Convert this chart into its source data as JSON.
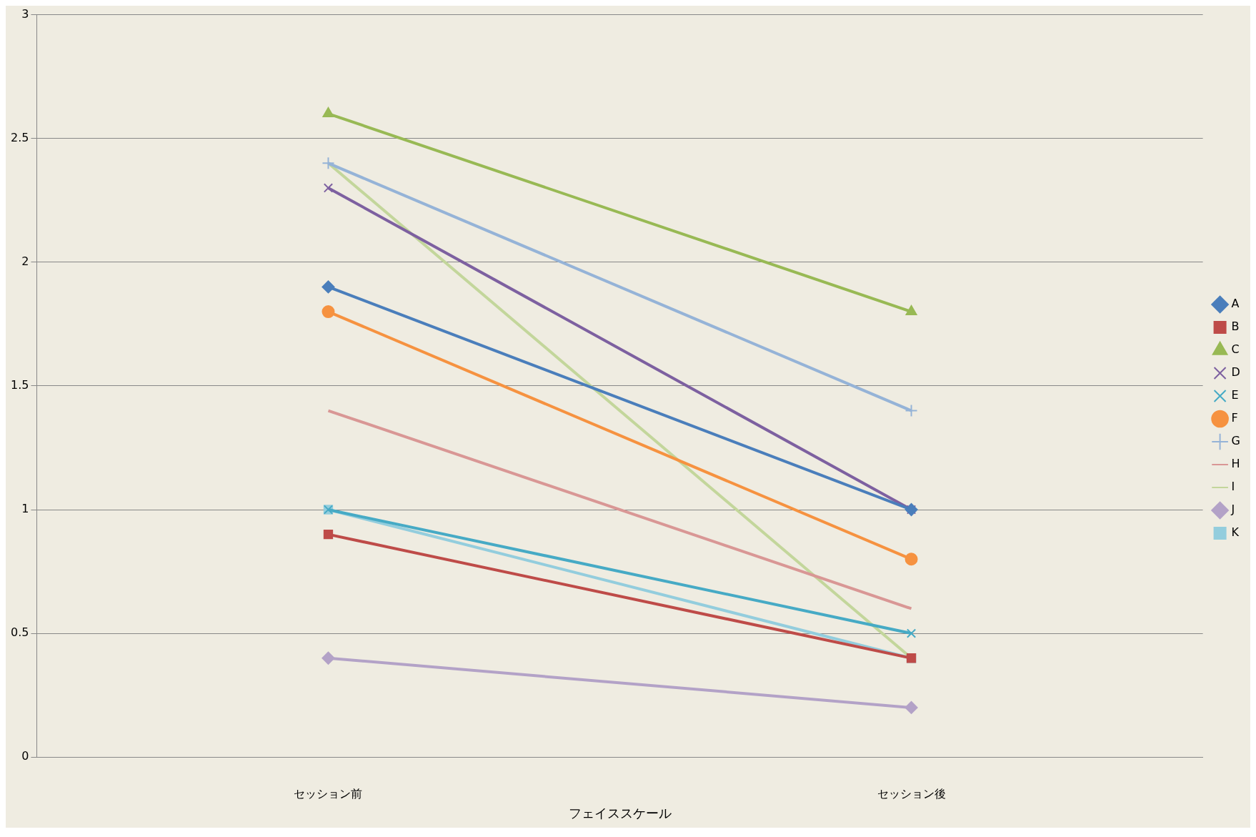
{
  "chart_data": {
    "type": "line",
    "xlabel": "フェイススケール",
    "categories": [
      "セッション前",
      "セッション後"
    ],
    "series": [
      {
        "name": "A",
        "color": "#4a7ebb",
        "marker": "diamond",
        "values": [
          1.9,
          1.0
        ]
      },
      {
        "name": "B",
        "color": "#be4b48",
        "marker": "square",
        "values": [
          0.9,
          0.4
        ]
      },
      {
        "name": "C",
        "color": "#98b954",
        "marker": "triangle",
        "values": [
          2.6,
          1.8
        ]
      },
      {
        "name": "D",
        "color": "#7d60a0",
        "marker": "cross",
        "values": [
          2.3,
          1.0
        ]
      },
      {
        "name": "E",
        "color": "#46aac5",
        "marker": "cross",
        "values": [
          1.0,
          0.5
        ]
      },
      {
        "name": "F",
        "color": "#f69240",
        "marker": "circle",
        "values": [
          1.8,
          0.8
        ]
      },
      {
        "name": "G",
        "color": "#95b3d7",
        "marker": "plus",
        "values": [
          2.4,
          1.4
        ]
      },
      {
        "name": "H",
        "color": "#d99795",
        "marker": "none",
        "values": [
          1.4,
          0.6
        ]
      },
      {
        "name": "I",
        "color": "#c3d69b",
        "marker": "none",
        "values": [
          2.4,
          0.4
        ]
      },
      {
        "name": "J",
        "color": "#b3a2c7",
        "marker": "diamond",
        "values": [
          0.4,
          0.2
        ]
      },
      {
        "name": "K",
        "color": "#93cddd",
        "marker": "square",
        "values": [
          1.0,
          0.4
        ]
      }
    ],
    "ylim": [
      0,
      3
    ],
    "yticks": [
      0,
      0.5,
      1,
      1.5,
      2,
      2.5,
      3
    ],
    "grid": "y",
    "legend": "right",
    "line_style": "solid"
  }
}
